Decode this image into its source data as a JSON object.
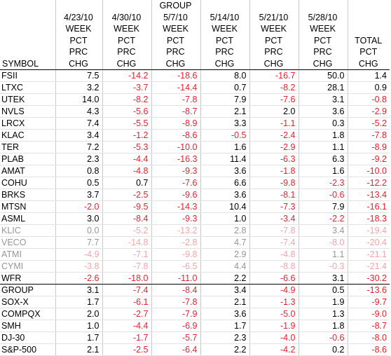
{
  "header": {
    "group_label": "GROUP",
    "symbol_label": "SYMBOL",
    "weeks": [
      "4/23/10",
      "4/30/10",
      "5/7/10",
      "5/14/10",
      "5/21/10",
      "5/28/10"
    ],
    "week_label": "WEEK",
    "pct_label": "PCT",
    "prc_label": "PRC",
    "chg_label": "CHG",
    "total_label": "TOTAL",
    "total_pct_label": "PCT",
    "total_chg_label": "CHG"
  },
  "colors": {
    "negative": "#e8202a",
    "positive": "#000000"
  },
  "stocks": [
    {
      "symbol": "FSII",
      "values": [
        "7.5",
        "-14.2",
        "-18.6",
        "8.0",
        "-16.7",
        "50.0",
        "1.4"
      ]
    },
    {
      "symbol": "LTXC",
      "values": [
        "3.2",
        "-3.7",
        "-14.4",
        "0.7",
        "-8.2",
        "28.1",
        "0.9"
      ]
    },
    {
      "symbol": "UTEK",
      "values": [
        "14.0",
        "-8.2",
        "-7.8",
        "7.9",
        "-7.6",
        "3.1",
        "-0.8"
      ]
    },
    {
      "symbol": "NVLS",
      "values": [
        "4.3",
        "-5.6",
        "-8.7",
        "2.1",
        "2.0",
        "3.6",
        "-2.9"
      ]
    },
    {
      "symbol": "LRCX",
      "values": [
        "7.4",
        "-5.5",
        "-8.9",
        "3.3",
        "-1.1",
        "0.3",
        "-5.2"
      ]
    },
    {
      "symbol": "KLAC",
      "values": [
        "3.4",
        "-1.2",
        "-8.6",
        "-0.5",
        "-2.4",
        "1.8",
        "-7.8"
      ]
    },
    {
      "symbol": "TER",
      "values": [
        "7.2",
        "-5.3",
        "-10.0",
        "1.6",
        "-2.9",
        "1.1",
        "-8.9"
      ]
    },
    {
      "symbol": "PLAB",
      "values": [
        "2.3",
        "-4.4",
        "-16.3",
        "11.4",
        "-6.3",
        "6.3",
        "-9.2"
      ]
    },
    {
      "symbol": "AMAT",
      "values": [
        "0.8",
        "-4.8",
        "-9.3",
        "3.6",
        "-1.8",
        "1.6",
        "-10.0"
      ]
    },
    {
      "symbol": "COHU",
      "values": [
        "0.5",
        "0.7",
        "-7.6",
        "6.6",
        "-9.8",
        "-2.3",
        "-12.2"
      ]
    },
    {
      "symbol": "BRKS",
      "values": [
        "3.7",
        "-2.5",
        "-9.6",
        "3.6",
        "-8.1",
        "-0.6",
        "-13.4"
      ]
    },
    {
      "symbol": "MTSN",
      "values": [
        "-2.0",
        "-9.5",
        "-14.3",
        "10.4",
        "-7.3",
        "7.9",
        "-16.1"
      ]
    },
    {
      "symbol": "ASML",
      "values": [
        "3.0",
        "-8.4",
        "-9.3",
        "1.0",
        "-3.4",
        "-2.2",
        "-18.3"
      ]
    },
    {
      "symbol": "KLIC",
      "values": [
        "0.0",
        "-5.2",
        "-13.2",
        "2.8",
        "-7.8",
        "3.4",
        "-19.4"
      ]
    },
    {
      "symbol": "VECO",
      "values": [
        "7.7",
        "-14.8",
        "-2.8",
        "4.7",
        "-7.4",
        "-8.0",
        "-20.4"
      ]
    },
    {
      "symbol": "ATMI",
      "values": [
        "-4.9",
        "-7.1",
        "-9.8",
        "2.9",
        "-4.8",
        "1.1",
        "-21.1"
      ]
    },
    {
      "symbol": "CYMI",
      "values": [
        "-3.8",
        "-7.8",
        "-6.5",
        "4.4",
        "-8.8",
        "-0.3",
        "-21.4"
      ]
    },
    {
      "symbol": "WFR",
      "values": [
        "-2.6",
        "-18.0",
        "-11.0",
        "2.2",
        "-6.6",
        "3.1",
        "-30.2"
      ]
    }
  ],
  "indices": [
    {
      "symbol": "GROUP",
      "values": [
        "3.1",
        "-7.4",
        "-8.4",
        "3.4",
        "-4.9",
        "0.5",
        "-13.6"
      ]
    },
    {
      "symbol": "SOX-X",
      "values": [
        "1.7",
        "-6.1",
        "-7.8",
        "2.1",
        "-1.3",
        "1.9",
        "-9.7"
      ]
    },
    {
      "symbol": "COMPQX",
      "values": [
        "2.0",
        "-2.7",
        "-7.9",
        "3.6",
        "-5.0",
        "1.3",
        "-9.0"
      ]
    },
    {
      "symbol": "SMH",
      "values": [
        "1.0",
        "-4.4",
        "-6.9",
        "1.7",
        "-1.9",
        "1.8",
        "-8.7"
      ]
    },
    {
      "symbol": "DJ-30",
      "values": [
        "1.7",
        "-1.7",
        "-5.7",
        "2.3",
        "-4.0",
        "-0.6",
        "-8.0"
      ]
    },
    {
      "symbol": "S&P-500",
      "values": [
        "2.1",
        "-2.5",
        "-6.4",
        "2.2",
        "-4.2",
        "0.2",
        "-8.6"
      ]
    }
  ]
}
